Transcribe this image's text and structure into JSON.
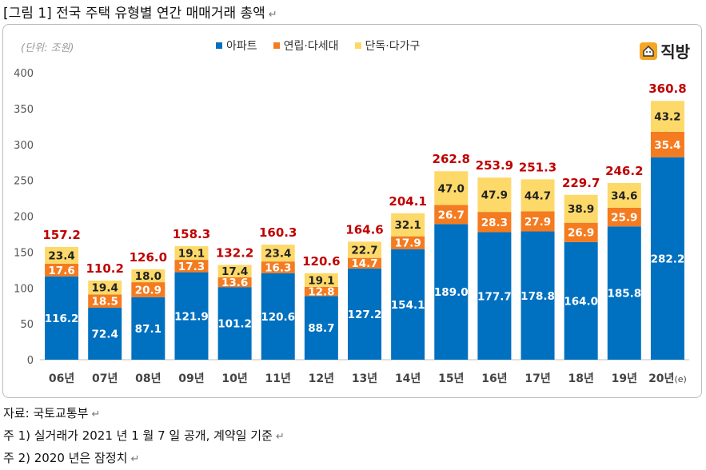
{
  "doc": {
    "title": "[그림 1] 전국 주택 유형별 연간 매매거래 총액",
    "return_mark": "↵"
  },
  "chart_meta": {
    "unit": "(단위: 조원)",
    "logo": "직방",
    "x_suffix": "(e)"
  },
  "colors": {
    "apartment": "#0070c0",
    "row_house": "#f47b20",
    "detached": "#fdd96a",
    "total_label": "#c00000"
  },
  "notes": [
    "자료: 국토교통부",
    "주 1) 실거래가 2021 년 1 월 7 일 공개, 계약일 기준",
    "주 2) 2020 년은 잠정치"
  ],
  "chart_data": {
    "type": "bar",
    "stacked": true,
    "categories": [
      "06년",
      "07년",
      "08년",
      "09년",
      "10년",
      "11년",
      "12년",
      "13년",
      "14년",
      "15년",
      "16년",
      "17년",
      "18년",
      "19년",
      "20년"
    ],
    "series": [
      {
        "name": "아파트",
        "values": [
          116.2,
          72.4,
          87.1,
          121.9,
          101.2,
          120.6,
          88.7,
          127.2,
          154.1,
          189.0,
          177.7,
          178.8,
          164.0,
          185.8,
          282.2
        ]
      },
      {
        "name": "연립·다세대",
        "values": [
          17.6,
          18.5,
          20.9,
          17.3,
          13.6,
          16.3,
          12.8,
          14.7,
          17.9,
          26.7,
          28.3,
          27.9,
          26.9,
          25.9,
          35.4
        ]
      },
      {
        "name": "단독·다가구",
        "values": [
          23.4,
          19.4,
          18.0,
          19.1,
          17.4,
          23.4,
          19.1,
          22.7,
          32.1,
          47.0,
          47.9,
          44.7,
          38.9,
          34.6,
          43.2
        ]
      }
    ],
    "totals": [
      157.2,
      110.2,
      126.0,
      158.3,
      132.2,
      160.3,
      120.6,
      164.6,
      204.1,
      262.8,
      253.9,
      251.3,
      229.7,
      246.2,
      360.8
    ],
    "ylim": [
      0,
      400
    ],
    "yticks": [
      0,
      50,
      100,
      150,
      200,
      250,
      300,
      350,
      400
    ],
    "grid": false,
    "legend": "top-center"
  }
}
